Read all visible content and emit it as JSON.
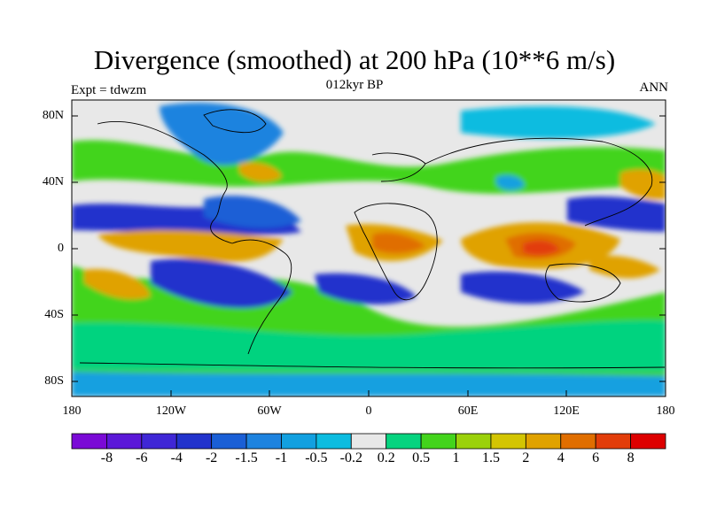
{
  "title": "Divergence (smoothed) at 200 hPa (10**6 m/s)",
  "subtitle": "012kyr BP",
  "left_label": "Expt = tdwzm",
  "right_label": "ANN",
  "y_ticks": [
    "80N",
    "40N",
    "0",
    "40S",
    "80S"
  ],
  "x_ticks": [
    "180",
    "120W",
    "60W",
    "0",
    "60E",
    "120E",
    "180"
  ],
  "colorbar": {
    "labels": [
      "-8",
      "-6",
      "-4",
      "-2",
      "-1.5",
      "-1",
      "-0.5",
      "-0.2",
      "0.2",
      "0.5",
      "1",
      "1.5",
      "2",
      "4",
      "6",
      "8"
    ],
    "colors": [
      "#7a0ad6",
      "#5b18d8",
      "#3f27d6",
      "#2233cc",
      "#1a5fd6",
      "#1e83df",
      "#12a0e0",
      "#0dbce0",
      "#e8e8e8",
      "#06d37f",
      "#43d41c",
      "#9bd10b",
      "#d3c502",
      "#e0a200",
      "#e06e00",
      "#e23d0a",
      "#dd0000"
    ]
  },
  "chart_data": {
    "type": "heatmap",
    "title": "Divergence (smoothed) at 200 hPa (10**6 m/s)",
    "subtitle": "012kyr BP",
    "x_range": [
      -180,
      180
    ],
    "y_range": [
      -90,
      90
    ],
    "contour_levels": [
      -8,
      -6,
      -4,
      -2,
      -1.5,
      -1,
      -0.5,
      -0.2,
      0.2,
      0.5,
      1,
      1.5,
      2,
      4,
      6,
      8
    ]
  }
}
